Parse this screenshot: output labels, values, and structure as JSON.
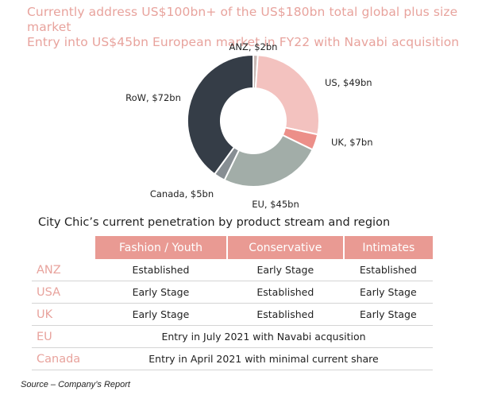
{
  "header": {
    "line1": "Currently address US$100bn+ of the US$180bn  total global plus size market",
    "line2": "Entry into US$45bn European market in FY22 with Navabi acquisition"
  },
  "chart_data": {
    "type": "pie",
    "donut": true,
    "categories": [
      "ANZ",
      "US",
      "UK",
      "EU",
      "Canada",
      "RoW"
    ],
    "values": [
      2,
      49,
      7,
      45,
      5,
      72
    ],
    "labels": [
      "ANZ, $2bn",
      "US, $49bn",
      "UK, $7bn",
      "EU, $45bn",
      "Canada, $5bn",
      "RoW, $72bn"
    ],
    "colors": [
      "#c8b8b4",
      "#f3c2bf",
      "#ec8f89",
      "#a2ada8",
      "#878e93",
      "#353d47"
    ],
    "start_angle_deg": 0,
    "direction": "clockwise"
  },
  "penetration": {
    "title": "City Chic’s current penetration by product stream and region",
    "columns": [
      "Fashion / Youth",
      "Conservative",
      "Intimates"
    ],
    "rows": [
      {
        "region": "ANZ",
        "cells": [
          "Established",
          "Early Stage",
          "Established"
        ]
      },
      {
        "region": "USA",
        "cells": [
          "Early Stage",
          "Established",
          "Early Stage"
        ]
      },
      {
        "region": "UK",
        "cells": [
          "Early Stage",
          "Established",
          "Early Stage"
        ]
      },
      {
        "region": "EU",
        "merged": "Entry in July 2021 with Navabi acqusition"
      },
      {
        "region": "Canada",
        "merged": "Entry in April 2021 with minimal current share"
      }
    ]
  },
  "footer": {
    "source": "Source – Company’s Report"
  }
}
